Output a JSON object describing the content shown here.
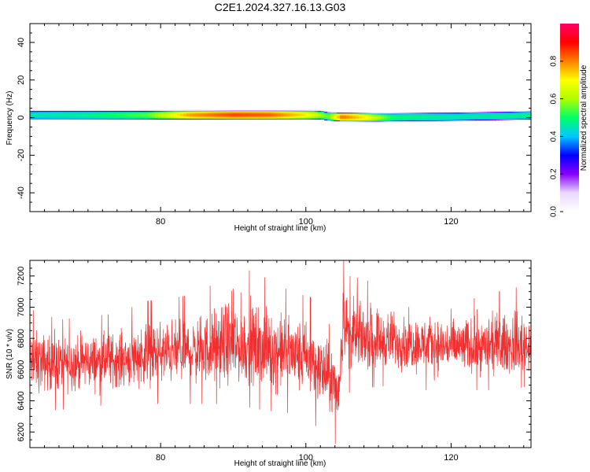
{
  "chart_data": [
    {
      "type": "heatmap",
      "title": "C2E1.2024.327.16.13.G03",
      "xlabel": "Height of straight line (km)",
      "ylabel": "Frequency (Hz)",
      "xlim": [
        62,
        131
      ],
      "ylim": [
        -50,
        50
      ],
      "x_ticks": [
        80,
        100,
        120
      ],
      "x_tick_labels": [
        "80",
        "100",
        "120"
      ],
      "y_ticks": [
        -40,
        -20,
        0,
        20,
        40
      ],
      "y_tick_labels": [
        "-40",
        "-20",
        "0",
        "20",
        "40"
      ],
      "center_frequency_hz": [
        [
          62,
          1.5
        ],
        [
          70,
          1.5
        ],
        [
          80,
          1.5
        ],
        [
          90,
          1.6
        ],
        [
          100,
          1.6
        ],
        [
          102,
          1.5
        ],
        [
          103,
          0.8
        ],
        [
          105,
          0.4
        ],
        [
          110,
          0.2
        ],
        [
          115,
          0.4
        ],
        [
          120,
          0.6
        ],
        [
          125,
          0.9
        ],
        [
          131,
          1.3
        ]
      ],
      "peak_amplitude": [
        [
          62,
          0.45
        ],
        [
          70,
          0.48
        ],
        [
          78,
          0.55
        ],
        [
          84,
          0.78
        ],
        [
          90,
          0.85
        ],
        [
          95,
          0.83
        ],
        [
          100,
          0.72
        ],
        [
          103,
          0.55
        ],
        [
          105,
          0.82
        ],
        [
          108,
          0.72
        ],
        [
          112,
          0.5
        ],
        [
          120,
          0.46
        ],
        [
          131,
          0.48
        ]
      ],
      "colorbar": {
        "label": "Normalized spectral amplitude",
        "range": [
          0,
          1
        ],
        "ticks": [
          0.0,
          0.2,
          0.4,
          0.6,
          0.8
        ],
        "tick_labels": [
          "0.0",
          "0.2",
          "0.4",
          "0.6",
          "0.8"
        ],
        "colormap": [
          "#ffffff",
          "#e8d8ff",
          "#8800ff",
          "#0000ff",
          "#00c8ff",
          "#00ff66",
          "#b0ff00",
          "#ffff00",
          "#ff8000",
          "#ff0000",
          "#ff0066"
        ]
      }
    },
    {
      "type": "line",
      "xlabel": "Height of straight line (km)",
      "ylabel": "SNR (10 * v/v)",
      "xlim": [
        62,
        131
      ],
      "ylim": [
        6100,
        7300
      ],
      "x_ticks": [
        80,
        100,
        120
      ],
      "x_tick_labels": [
        "80",
        "100",
        "120"
      ],
      "y_ticks": [
        6200,
        6400,
        6600,
        6800,
        7000,
        7200
      ],
      "y_tick_labels": [
        "6200",
        "6400",
        "6600",
        "6800",
        "7000",
        "7200"
      ],
      "color": "#f03030",
      "envelope": {
        "x": [
          62,
          66,
          70,
          74,
          78,
          82,
          86,
          90,
          94,
          98,
          101,
          103,
          104.5,
          105.2,
          106,
          108,
          112,
          116,
          120,
          124,
          128,
          131
        ],
        "mean": [
          6640,
          6640,
          6650,
          6660,
          6690,
          6710,
          6720,
          6740,
          6720,
          6700,
          6640,
          6560,
          6450,
          6950,
          6800,
          6800,
          6780,
          6760,
          6750,
          6740,
          6740,
          6750
        ],
        "max": [
          6990,
          6920,
          6940,
          6960,
          7040,
          7060,
          7100,
          7280,
          7200,
          7100,
          7060,
          6900,
          6850,
          7300,
          7200,
          7180,
          7100,
          7050,
          7050,
          7060,
          7120,
          7140
        ],
        "min": [
          6340,
          6340,
          6360,
          6380,
          6380,
          6380,
          6380,
          6380,
          6340,
          6320,
          6250,
          6180,
          6100,
          6600,
          6450,
          6480,
          6500,
          6470,
          6460,
          6470,
          6460,
          6500
        ]
      }
    }
  ]
}
